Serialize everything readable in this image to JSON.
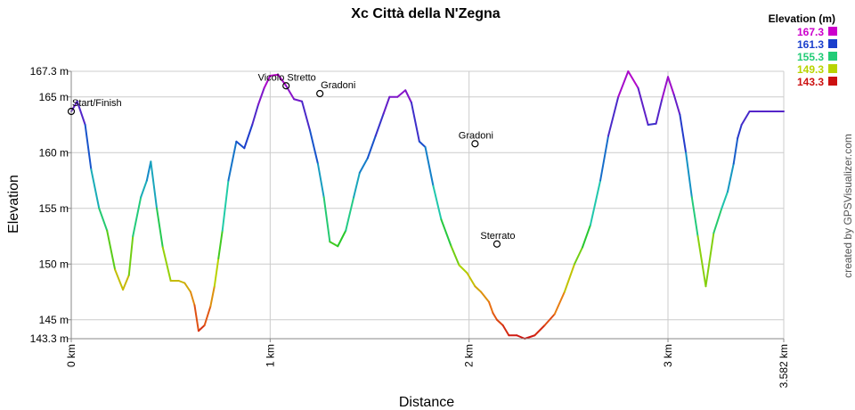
{
  "chart_data": {
    "type": "line",
    "title": "Xc Città della N'Zegna",
    "xlabel": "Distance",
    "ylabel": "Elevation",
    "xlim": [
      0,
      3.582
    ],
    "ylim": [
      143.3,
      167.3
    ],
    "x_ticks": [
      {
        "value": 0,
        "label": "0 km"
      },
      {
        "value": 1,
        "label": "1 km"
      },
      {
        "value": 2,
        "label": "2 km"
      },
      {
        "value": 3,
        "label": "3 km"
      },
      {
        "value": 3.582,
        "label": "3.582 km"
      }
    ],
    "y_ticks": [
      {
        "value": 143.3,
        "label": "143.3 m"
      },
      {
        "value": 145,
        "label": "145 m"
      },
      {
        "value": 150,
        "label": "150 m"
      },
      {
        "value": 155,
        "label": "155 m"
      },
      {
        "value": 160,
        "label": "160 m"
      },
      {
        "value": 165,
        "label": "165 m"
      },
      {
        "value": 167.3,
        "label": "167.3 m"
      }
    ],
    "grid": true,
    "legend_position": "top-right",
    "legend": {
      "title": "Elevation (m)",
      "entries": [
        {
          "label": "167.3",
          "color": "#cc00cc"
        },
        {
          "label": "161.3",
          "color": "#1a3fcc"
        },
        {
          "label": "155.3",
          "color": "#22cc77"
        },
        {
          "label": "149.3",
          "color": "#b8d400"
        },
        {
          "label": "143.3",
          "color": "#cc1111"
        }
      ]
    },
    "series": [
      {
        "color_by": "elevation",
        "x": [
          0,
          0.03,
          0.07,
          0.1,
          0.14,
          0.18,
          0.22,
          0.26,
          0.29,
          0.31,
          0.35,
          0.38,
          0.4,
          0.43,
          0.46,
          0.5,
          0.54,
          0.57,
          0.6,
          0.62,
          0.64,
          0.67,
          0.7,
          0.72,
          0.74,
          0.76,
          0.79,
          0.83,
          0.87,
          0.91,
          0.94,
          0.97,
          1.0,
          1.04,
          1.08,
          1.12,
          1.16,
          1.2,
          1.24,
          1.27,
          1.3,
          1.34,
          1.38,
          1.42,
          1.45,
          1.49,
          1.53,
          1.57,
          1.6,
          1.64,
          1.68,
          1.71,
          1.75,
          1.78,
          1.82,
          1.86,
          1.91,
          1.95,
          1.99,
          2.03,
          2.06,
          2.1,
          2.12,
          2.14,
          2.17,
          2.2,
          2.24,
          2.28,
          2.33,
          2.38,
          2.43,
          2.48,
          2.53,
          2.57,
          2.61,
          2.66,
          2.7,
          2.75,
          2.8,
          2.85,
          2.9,
          2.94,
          2.97,
          3.0,
          3.03,
          3.06,
          3.09,
          3.12,
          3.15,
          3.19,
          3.23,
          3.27,
          3.3,
          3.33,
          3.35,
          3.37,
          3.41,
          3.45,
          3.48,
          3.52,
          3.55,
          3.582
        ],
        "y": [
          163.7,
          164.6,
          162.5,
          158.5,
          155.0,
          153.0,
          149.5,
          147.7,
          149.0,
          152.5,
          156.0,
          157.5,
          159.2,
          155.0,
          151.5,
          148.5,
          148.5,
          148.3,
          147.5,
          146.3,
          144.0,
          144.5,
          146.2,
          148.0,
          150.5,
          153.0,
          157.5,
          161.0,
          160.4,
          162.5,
          164.3,
          165.8,
          166.9,
          167.0,
          166.0,
          164.8,
          164.6,
          162.0,
          159.0,
          156.0,
          152.0,
          151.6,
          153.0,
          156.0,
          158.2,
          159.5,
          161.5,
          163.5,
          165.0,
          165.0,
          165.6,
          164.5,
          161.0,
          160.5,
          157.0,
          154.0,
          151.6,
          149.9,
          149.2,
          148.0,
          147.5,
          146.6,
          145.6,
          145.0,
          144.5,
          143.6,
          143.6,
          143.3,
          143.6,
          144.5,
          145.5,
          147.5,
          150.0,
          151.5,
          153.5,
          157.5,
          161.5,
          165.0,
          167.3,
          165.8,
          162.5,
          162.6,
          164.8,
          166.8,
          165.2,
          163.4,
          160.0,
          156.0,
          152.5,
          148.0,
          152.8,
          155.0,
          156.5,
          159.0,
          161.3,
          162.5,
          163.7,
          163.7,
          163.7,
          163.7,
          163.7,
          163.7
        ]
      }
    ],
    "annotations": [
      {
        "label": "Start/Finish",
        "x": 0,
        "y": 163.7
      },
      {
        "label": "Vicolo Stretto",
        "x": 1.08,
        "y": 166.0
      },
      {
        "label": "Gradoni",
        "x": 1.25,
        "y": 165.3
      },
      {
        "label": "Gradoni",
        "x": 2.03,
        "y": 160.8
      },
      {
        "label": "Sterrato",
        "x": 2.14,
        "y": 151.8
      }
    ],
    "credit": "created by GPSVisualizer.com"
  }
}
